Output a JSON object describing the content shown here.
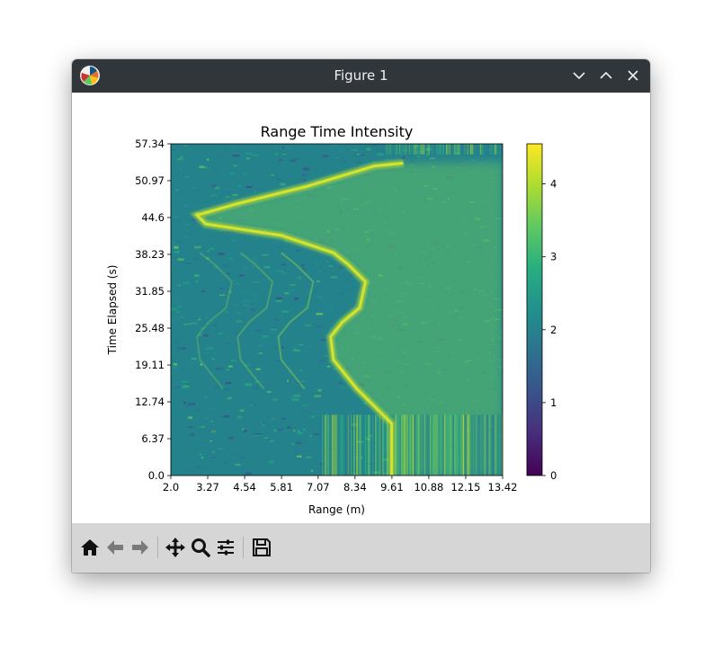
{
  "window": {
    "title": "Figure 1"
  },
  "titlebar_icons": [
    "matplotlib-logo-icon",
    "minimize-icon",
    "maximize-icon",
    "close-icon"
  ],
  "toolbar": {
    "buttons": [
      {
        "name": "home-icon",
        "label": "Home"
      },
      {
        "name": "back-arrow-icon",
        "label": "Back"
      },
      {
        "name": "forward-arrow-icon",
        "label": "Forward"
      },
      {
        "name": "pan-icon",
        "label": "Pan"
      },
      {
        "name": "zoom-icon",
        "label": "Zoom"
      },
      {
        "name": "configure-subplots-icon",
        "label": "Subplots"
      },
      {
        "name": "save-icon",
        "label": "Save"
      }
    ]
  },
  "chart_data": {
    "type": "heatmap",
    "title": "Range Time Intensity",
    "xlabel": "Range (m)",
    "ylabel": "Time Elapsed (s)",
    "xlim": [
      2.0,
      13.42
    ],
    "ylim": [
      0.0,
      57.34
    ],
    "xticks": [
      "2.0",
      "3.27",
      "4.54",
      "5.81",
      "7.07",
      "8.34",
      "9.61",
      "10.88",
      "12.15",
      "13.42"
    ],
    "yticks": [
      "0.0",
      "6.37",
      "12.74",
      "19.11",
      "25.48",
      "31.85",
      "38.23",
      "44.6",
      "50.97",
      "57.34"
    ],
    "colormap": "viridis",
    "colorbar": {
      "range": [
        0,
        4.55
      ],
      "ticks": [
        "0",
        "1",
        "2",
        "3",
        "4"
      ]
    },
    "ridge_trace": [
      {
        "t": 0.0,
        "r": 9.6
      },
      {
        "t": 9.0,
        "r": 9.6
      },
      {
        "t": 15.0,
        "r": 8.4
      },
      {
        "t": 20.0,
        "r": 7.6
      },
      {
        "t": 24.0,
        "r": 7.5
      },
      {
        "t": 26.5,
        "r": 7.9
      },
      {
        "t": 29.0,
        "r": 8.5
      },
      {
        "t": 33.5,
        "r": 8.7
      },
      {
        "t": 36.5,
        "r": 8.1
      },
      {
        "t": 38.5,
        "r": 7.6
      },
      {
        "t": 41.5,
        "r": 5.8
      },
      {
        "t": 43.5,
        "r": 3.2
      },
      {
        "t": 45.0,
        "r": 2.9
      },
      {
        "t": 47.0,
        "r": 4.3
      },
      {
        "t": 50.0,
        "r": 6.7
      },
      {
        "t": 53.5,
        "r": 9.0
      },
      {
        "t": 54.0,
        "r": 10.0
      }
    ],
    "colors": {
      "background": "#2a8a8a",
      "low": "#3b528b",
      "mid": "#21918c",
      "high": "#5ec962",
      "peak": "#c8e020"
    }
  }
}
